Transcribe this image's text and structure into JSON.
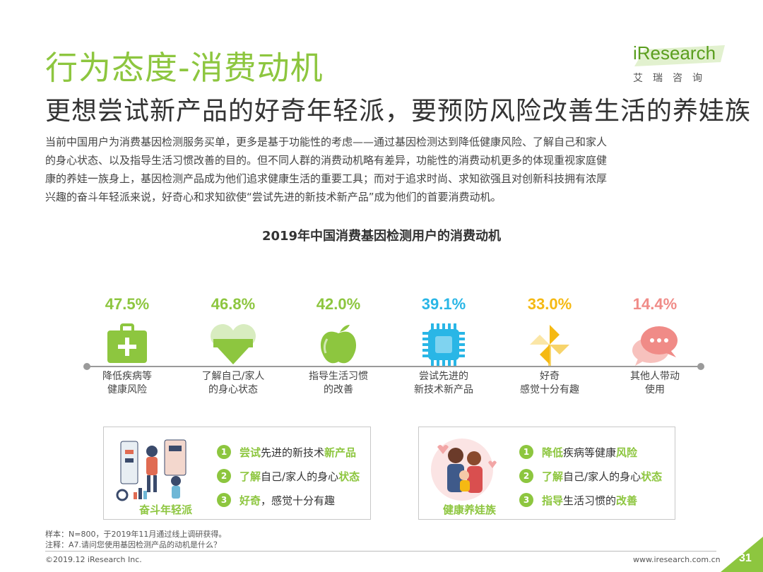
{
  "page": {
    "title": "行为态度-消费动机",
    "subtitle": "更想尝试新产品的好奇年轻派，要预防风险改善生活的养娃族",
    "intro_lines": [
      "当前中国用户为消费基因检测服务买单，更多是基于功能性的考虑——通过基因检测达到降低健康风险、了解自己和家人",
      "的身心状态、以及指导生活习惯改善的目的。但不同人群的消费动机略有差异，功能性的消费动机更多的体现重视家庭健",
      "康的养娃一族身上，基因检测产品成为他们追求健康生活的重要工具；而对于追求时尚、求知欲强且对创新科技拥有浓厚",
      "兴趣的奋斗年轻派来说，好奇心和求知欲使“尝试先进的新技术新产品”成为他们的首要消费动机。"
    ]
  },
  "logo": {
    "word": "iResearch",
    "cn": "艾瑞咨询"
  },
  "chart_data": {
    "type": "bar",
    "title": "2019年中国消费基因检测用户的消费动机",
    "unit": "%",
    "categories": [
      [
        "降低疾病等",
        "健康风险"
      ],
      [
        "了解自己/家人",
        "的身心状态"
      ],
      [
        "指导生活习惯",
        "的改善"
      ],
      [
        "尝试先进的",
        "新技术新产品"
      ],
      [
        "好奇",
        "感觉十分有趣"
      ],
      [
        "其他人带动",
        "使用"
      ]
    ],
    "values": [
      47.5,
      46.8,
      42.0,
      39.1,
      33.0,
      14.4
    ],
    "value_labels": [
      "47.5%",
      "46.8%",
      "42.0%",
      "39.1%",
      "33.0%",
      "14.4%"
    ],
    "colors": [
      "#8dc63f",
      "#8dc63f",
      "#8dc63f",
      "#29b6e6",
      "#f5b913",
      "#f08b87"
    ],
    "icons": [
      "first-aid-kit-icon",
      "heart-icon",
      "apple-icon",
      "chip-icon",
      "pinwheel-icon",
      "chat-bubbles-icon"
    ]
  },
  "segments": [
    {
      "caption": "奋斗年轻派",
      "items": [
        {
          "num": "1",
          "parts": [
            {
              "t": "尝试",
              "hl": true
            },
            {
              "t": "先进的新技术",
              "hl": false
            },
            {
              "t": "新产品",
              "hl": true
            }
          ]
        },
        {
          "num": "2",
          "parts": [
            {
              "t": "了解",
              "hl": true
            },
            {
              "t": "自己/家人的身心",
              "hl": false
            },
            {
              "t": "状态",
              "hl": true
            }
          ]
        },
        {
          "num": "3",
          "parts": [
            {
              "t": "好奇",
              "hl": true
            },
            {
              "t": "，感觉十分有趣",
              "hl": false
            }
          ]
        }
      ]
    },
    {
      "caption": "健康养娃族",
      "items": [
        {
          "num": "1",
          "parts": [
            {
              "t": "降低",
              "hl": true
            },
            {
              "t": "疾病等健康",
              "hl": false
            },
            {
              "t": "风险",
              "hl": true
            }
          ]
        },
        {
          "num": "2",
          "parts": [
            {
              "t": "了解",
              "hl": true
            },
            {
              "t": "自己/家人的身心",
              "hl": false
            },
            {
              "t": "状态",
              "hl": true
            }
          ]
        },
        {
          "num": "3",
          "parts": [
            {
              "t": "指导",
              "hl": true
            },
            {
              "t": "生活习惯的",
              "hl": false
            },
            {
              "t": "改善",
              "hl": true
            }
          ]
        }
      ]
    }
  ],
  "notes": {
    "sample": "样本：N=800，于2019年11月通过线上调研获得。",
    "note": "注释：A7.请问您使用基因检测产品的动机是什么？"
  },
  "footer": {
    "copyright": "©2019.12 iResearch Inc.",
    "website": "www.iresearch.com.cn",
    "page_number": "31"
  }
}
